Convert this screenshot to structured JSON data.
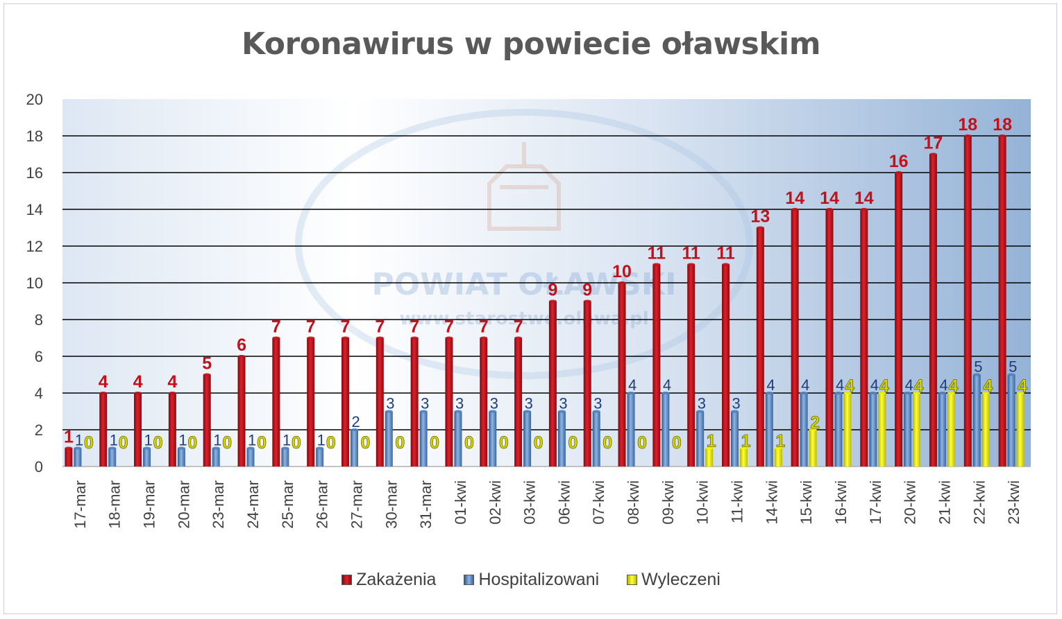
{
  "chart_data": {
    "type": "bar",
    "title": "Koronawirus w powiecie oławskim",
    "xlabel": "",
    "ylabel": "",
    "ylim": [
      0,
      20
    ],
    "yticks": [
      0,
      2,
      4,
      6,
      8,
      10,
      12,
      14,
      16,
      18,
      20
    ],
    "categories": [
      "17-mar",
      "18-mar",
      "19-mar",
      "20-mar",
      "23-mar",
      "24-mar",
      "25-mar",
      "26-mar",
      "27-mar",
      "30-mar",
      "31-mar",
      "01-kwi",
      "02-kwi",
      "03-kwi",
      "06-kwi",
      "07-kwi",
      "08-kwi",
      "09-kwi",
      "10-kwi",
      "11-kwi",
      "14-kwi",
      "15-kwi",
      "16-kwi",
      "17-kwi",
      "20-kwi",
      "21-kwi",
      "22-kwi",
      "23-kwi"
    ],
    "series": [
      {
        "name": "Zakażenia",
        "color": "#c0121b",
        "values": [
          1,
          4,
          4,
          4,
          5,
          6,
          7,
          7,
          7,
          7,
          7,
          7,
          7,
          7,
          9,
          9,
          10,
          11,
          11,
          11,
          13,
          14,
          14,
          14,
          16,
          17,
          18,
          18
        ]
      },
      {
        "name": "Hospitalizowani",
        "color": "#4f81bd",
        "values": [
          1,
          1,
          1,
          1,
          1,
          1,
          1,
          1,
          2,
          3,
          3,
          3,
          3,
          3,
          3,
          3,
          4,
          4,
          3,
          3,
          4,
          4,
          4,
          4,
          4,
          4,
          5,
          5
        ]
      },
      {
        "name": "Wyleczeni",
        "color": "#f2f20a",
        "values": [
          0,
          0,
          0,
          0,
          0,
          0,
          0,
          0,
          0,
          0,
          0,
          0,
          0,
          0,
          0,
          0,
          0,
          0,
          1,
          1,
          1,
          2,
          4,
          4,
          4,
          4,
          4,
          4
        ]
      }
    ],
    "legend": "bottom",
    "grid": true
  },
  "watermark": {
    "title": "POWIAT OŁAWSKI",
    "url": "www.starostwo.olawa.pl"
  }
}
